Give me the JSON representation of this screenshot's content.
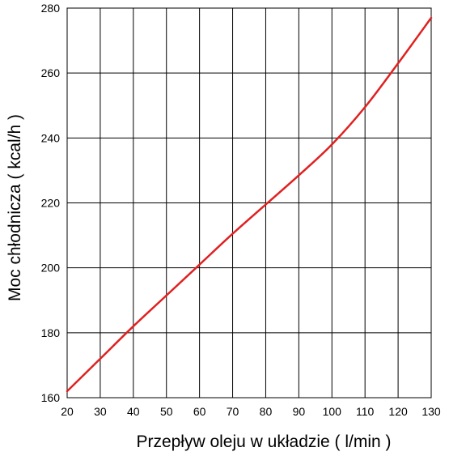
{
  "chart_data": {
    "type": "line",
    "xlabel": "Przepływ oleju w układzie ( l/min )",
    "ylabel": "Moc chłodnicza ( kcal/h )",
    "xlim": [
      20,
      130
    ],
    "ylim": [
      160,
      280
    ],
    "x_ticks": [
      20,
      30,
      40,
      50,
      60,
      70,
      80,
      90,
      100,
      110,
      120,
      130
    ],
    "y_ticks": [
      160,
      180,
      200,
      220,
      240,
      260,
      280
    ],
    "grid": true,
    "series": [
      {
        "color": "#e02020",
        "x": [
          20,
          30,
          40,
          50,
          60,
          70,
          80,
          90,
          100,
          110,
          120,
          130
        ],
        "y": [
          162,
          172,
          182,
          191.5,
          201,
          210.5,
          219.5,
          228.5,
          238,
          249.5,
          263,
          277
        ]
      }
    ]
  }
}
